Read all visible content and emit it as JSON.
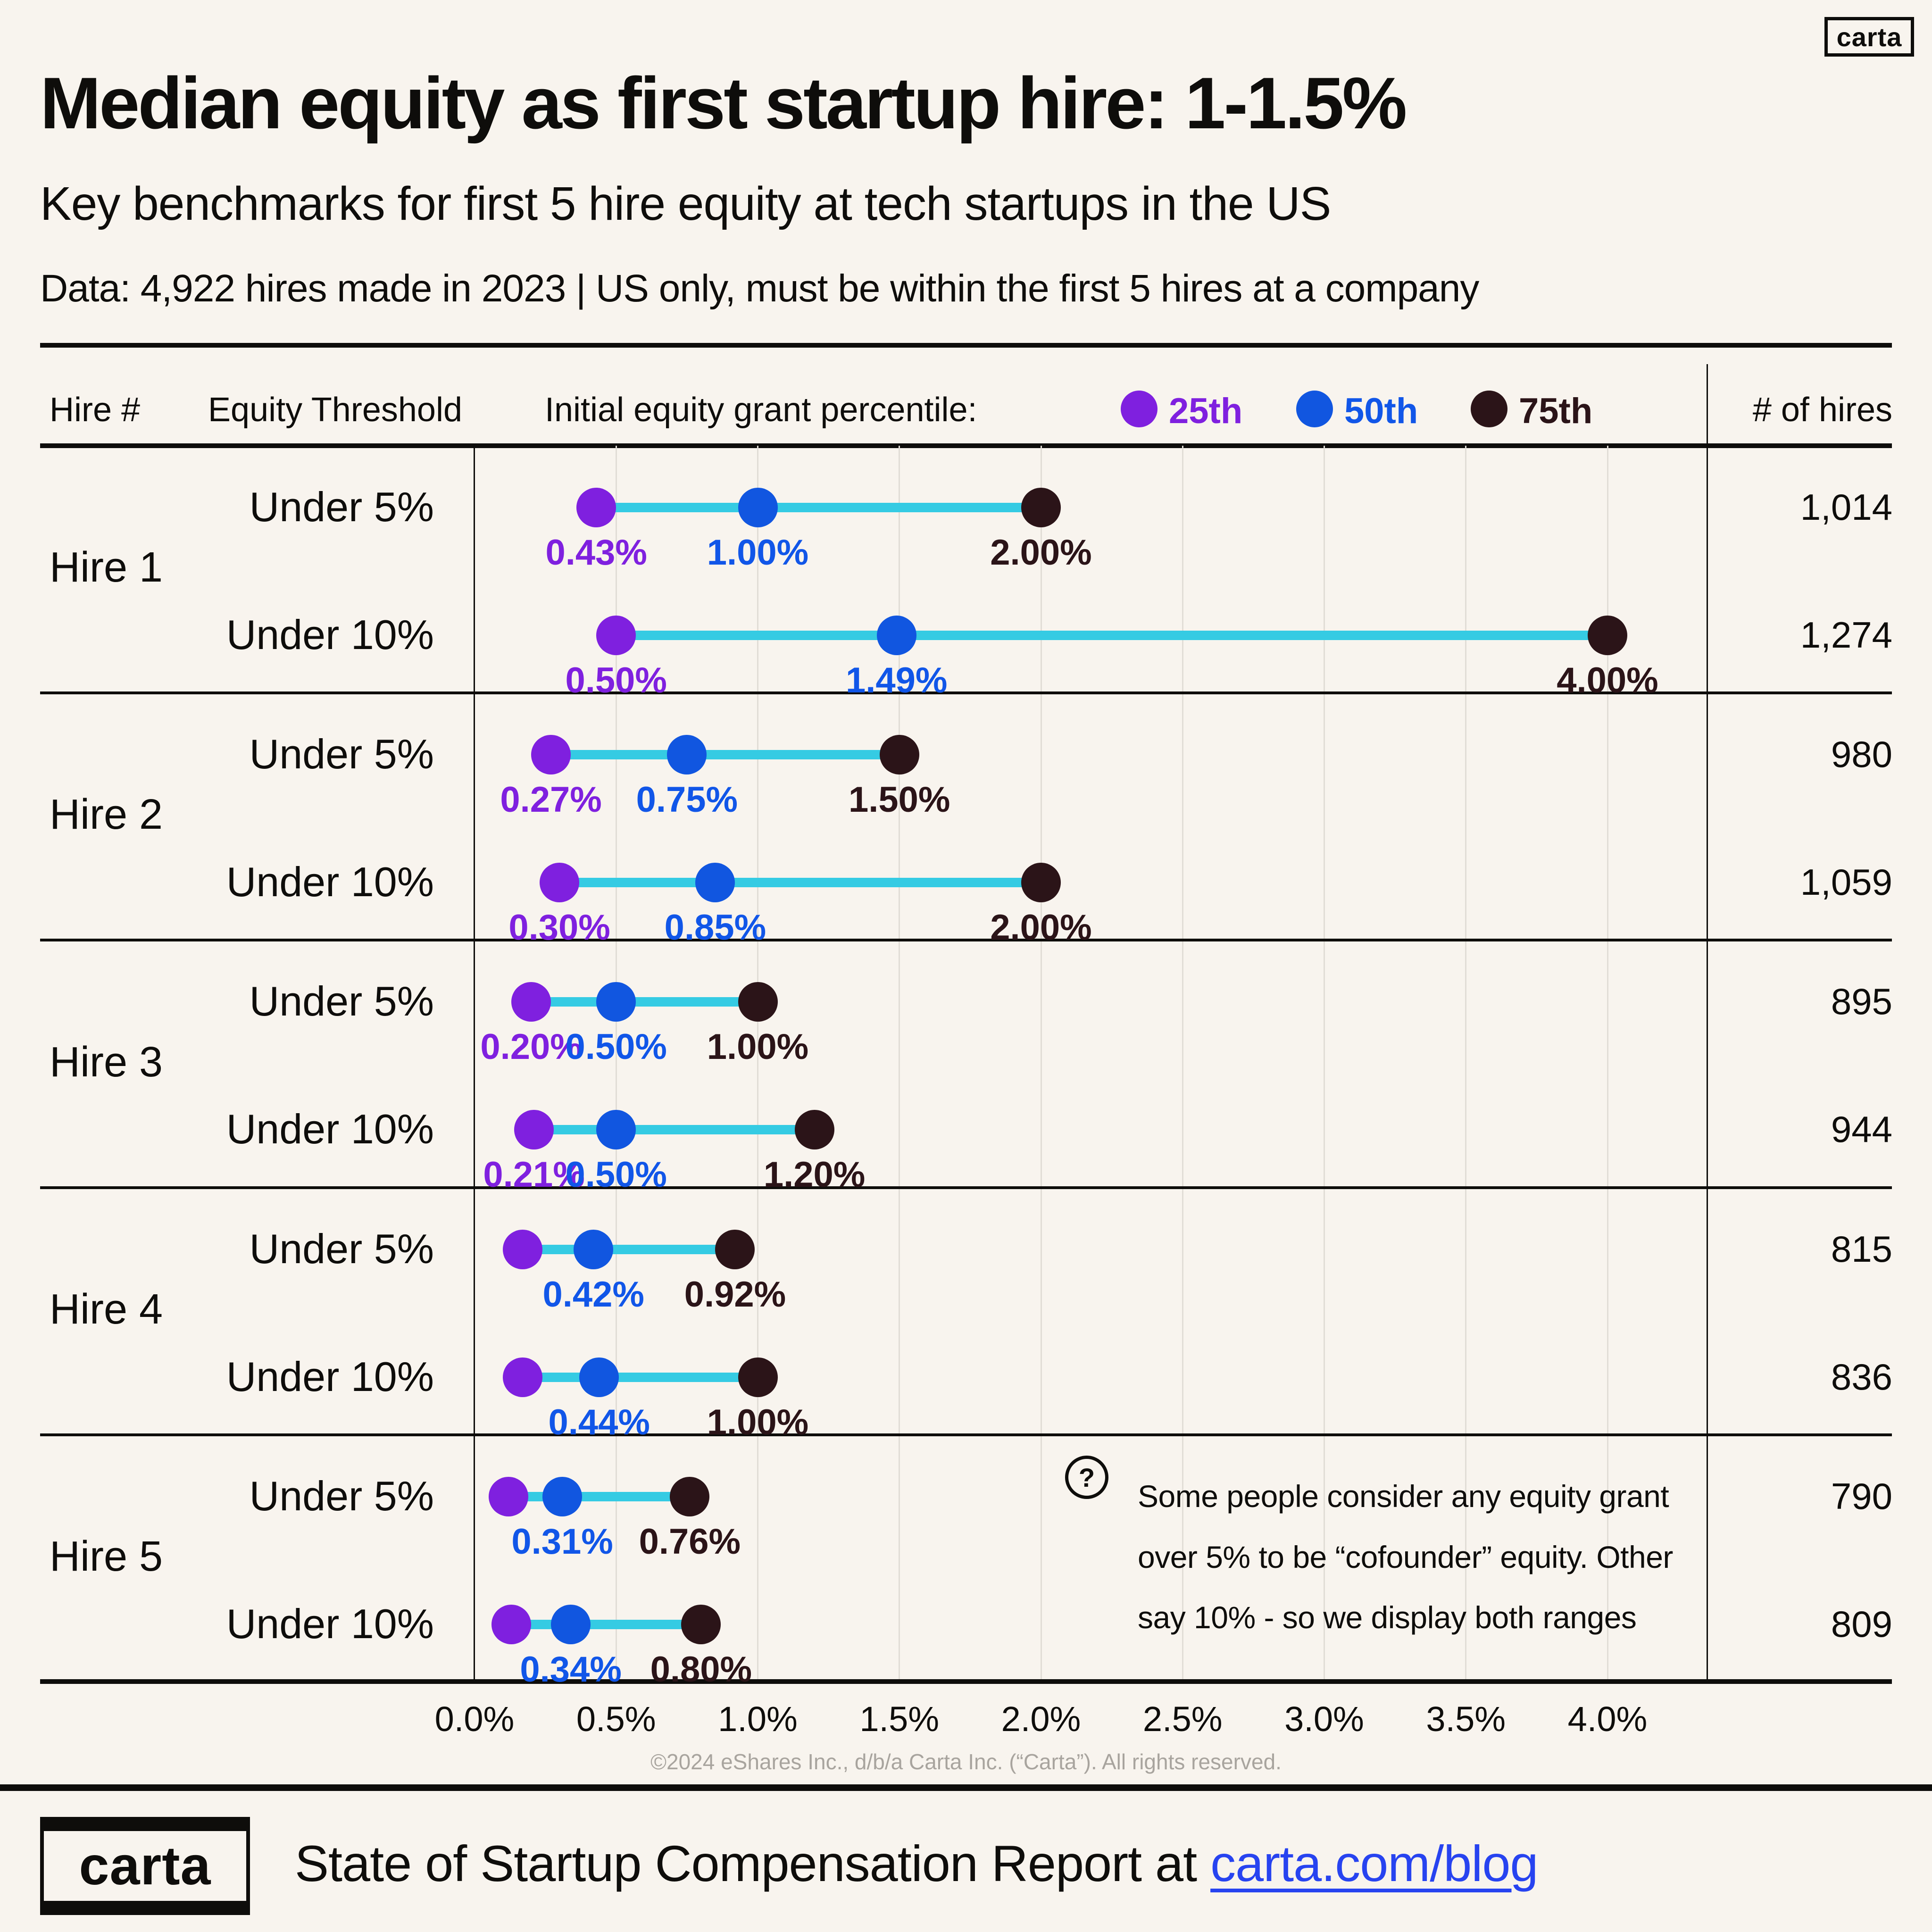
{
  "colors": {
    "background": "#F8F4EE",
    "ink": "#0E0D0B",
    "p25": "#7F20DF",
    "p50": "#1156E0",
    "p50_text": "#1156E8",
    "p75": "#2B1418",
    "connector": "#35CBE3",
    "gridline": "#E1DDD6",
    "muted": "#A8A49E",
    "link": "#2743F0"
  },
  "brand": {
    "logo_text": "carta"
  },
  "header": {
    "title": "Median equity as first startup hire: 1-1.5%",
    "subtitle": "Key benchmarks for first 5 hire equity at tech startups in the US",
    "data_note": "Data: 4,922 hires made in 2023 | US only, must be within the first 5 hires at a company"
  },
  "table_header": {
    "hire_col": "Hire #",
    "threshold_col": "Equity Threshold",
    "legend_title": "Initial equity grant percentile:",
    "legend": [
      {
        "name": "25th"
      },
      {
        "name": "50th"
      },
      {
        "name": "75th"
      }
    ],
    "hires_col": "# of hires"
  },
  "chart_data": {
    "type": "dumbbell",
    "x_unit": "equity percent",
    "x_range": [
      0,
      4.0
    ],
    "grid": true,
    "x_ticks": [
      {
        "pct": 0.0,
        "label": "0.0%"
      },
      {
        "pct": 0.5,
        "label": "0.5%"
      },
      {
        "pct": 1.0,
        "label": "1.0%"
      },
      {
        "pct": 1.5,
        "label": "1.5%"
      },
      {
        "pct": 2.0,
        "label": "2.0%"
      },
      {
        "pct": 2.5,
        "label": "2.5%"
      },
      {
        "pct": 3.0,
        "label": "3.0%"
      },
      {
        "pct": 3.5,
        "label": "3.5%"
      },
      {
        "pct": 4.0,
        "label": "4.0%"
      }
    ],
    "percentile_series": [
      "25th",
      "50th",
      "75th"
    ],
    "groups": [
      {
        "hire": "Hire 1",
        "rows": [
          {
            "threshold": "Under 5%",
            "p25": 0.43,
            "p50": 1.0,
            "p75": 2.0,
            "p25_label": "0.43%",
            "p50_label": "1.00%",
            "p75_label": "2.00%",
            "hires": "1,014"
          },
          {
            "threshold": "Under 10%",
            "p25": 0.5,
            "p50": 1.49,
            "p75": 4.0,
            "p25_label": "0.50%",
            "p50_label": "1.49%",
            "p75_label": "4.00%",
            "hires": "1,274"
          }
        ]
      },
      {
        "hire": "Hire 2",
        "rows": [
          {
            "threshold": "Under 5%",
            "p25": 0.27,
            "p50": 0.75,
            "p75": 1.5,
            "p25_label": "0.27%",
            "p50_label": "0.75%",
            "p75_label": "1.50%",
            "hires": "980"
          },
          {
            "threshold": "Under 10%",
            "p25": 0.3,
            "p50": 0.85,
            "p75": 2.0,
            "p25_label": "0.30%",
            "p50_label": "0.85%",
            "p75_label": "2.00%",
            "hires": "1,059"
          }
        ]
      },
      {
        "hire": "Hire 3",
        "rows": [
          {
            "threshold": "Under 5%",
            "p25": 0.2,
            "p50": 0.5,
            "p75": 1.0,
            "p25_label": "0.20%",
            "p50_label": "0.50%",
            "p75_label": "1.00%",
            "hires": "895"
          },
          {
            "threshold": "Under 10%",
            "p25": 0.21,
            "p50": 0.5,
            "p75": 1.2,
            "p25_label": "0.21%",
            "p50_label": "0.50%",
            "p75_label": "1.20%",
            "hires": "944"
          }
        ]
      },
      {
        "hire": "Hire 4",
        "rows": [
          {
            "threshold": "Under 5%",
            "p25": 0.17,
            "p50": 0.42,
            "p75": 0.92,
            "p25_label": "",
            "p50_label": "0.42%",
            "p75_label": "0.92%",
            "hires": "815"
          },
          {
            "threshold": "Under 10%",
            "p25": 0.17,
            "p50": 0.44,
            "p75": 1.0,
            "p25_label": "",
            "p50_label": "0.44%",
            "p75_label": "1.00%",
            "hires": "836"
          }
        ]
      },
      {
        "hire": "Hire 5",
        "rows": [
          {
            "threshold": "Under 5%",
            "p25": 0.12,
            "p50": 0.31,
            "p75": 0.76,
            "p25_label": "",
            "p50_label": "0.31%",
            "p75_label": "0.76%",
            "hires": "790"
          },
          {
            "threshold": "Under 10%",
            "p25": 0.13,
            "p50": 0.34,
            "p75": 0.8,
            "p25_label": "",
            "p50_label": "0.34%",
            "p75_label": "0.80%",
            "hires": "809"
          }
        ]
      }
    ]
  },
  "note": {
    "icon": "?",
    "text": "Some people consider any equity grant over 5% to be “cofounder” equity. Other say 10% - so we display both ranges"
  },
  "footnote": "©2024 eShares Inc., d/b/a Carta Inc. (“Carta”). All rights reserved.",
  "footer": {
    "text": "State of Startup Compensation Report at ",
    "link": "carta.com/blog"
  }
}
